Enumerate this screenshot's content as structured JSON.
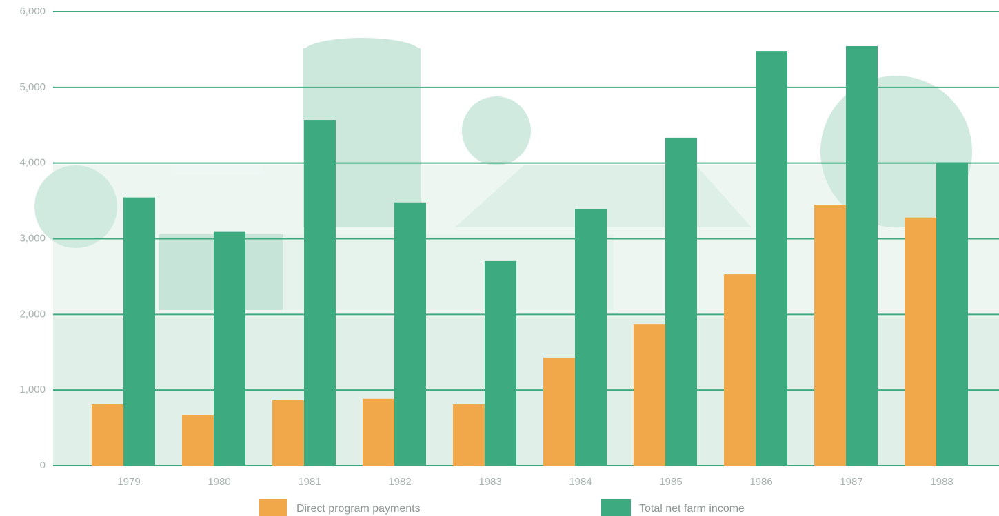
{
  "chart_data": {
    "type": "bar",
    "categories": [
      "1979",
      "1980",
      "1981",
      "1982",
      "1983",
      "1984",
      "1985",
      "1986",
      "1987",
      "1988"
    ],
    "series": [
      {
        "name": "Direct program payments",
        "color": "#f0a84a",
        "values": [
          810,
          665,
          865,
          885,
          810,
          1430,
          1865,
          2530,
          3450,
          3280
        ]
      },
      {
        "name": "Total net farm income",
        "color": "#3daa80",
        "values": [
          3545,
          3090,
          4570,
          3480,
          2705,
          3390,
          4335,
          5480,
          5545,
          4010
        ]
      }
    ],
    "ylim": [
      0,
      6000
    ],
    "yticks": [
      0,
      {
        "value": 1000,
        "label": "1,000"
      },
      {
        "value": 2000,
        "label": "2,000"
      },
      {
        "value": 3000,
        "label": "3,000"
      },
      {
        "value": 4000,
        "label": "4,000"
      },
      {
        "value": 5000,
        "label": "5,000"
      },
      {
        "value": 6000,
        "label": "6,000"
      }
    ],
    "grid": true
  }
}
